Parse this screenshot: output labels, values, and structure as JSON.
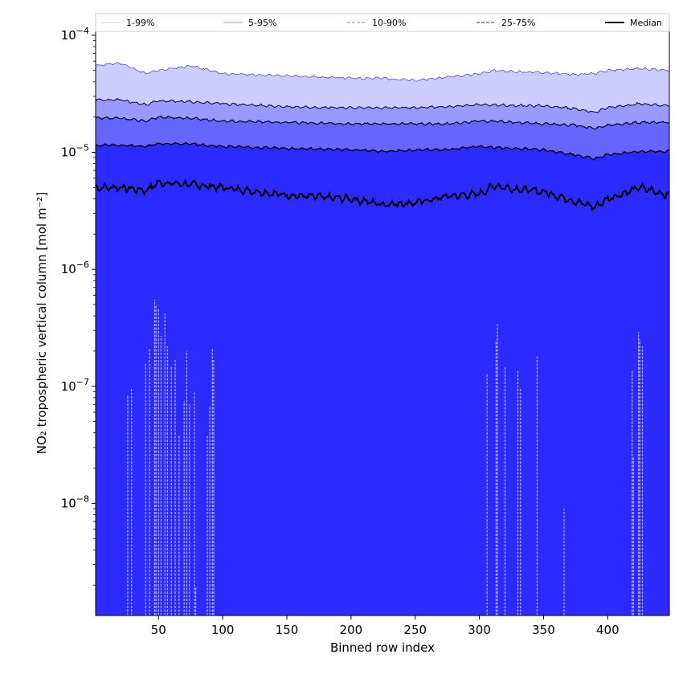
{
  "chart_data": {
    "type": "area",
    "xlabel": "Binned row index",
    "ylabel": "NO₂ tropospheric vertical column [mol m⁻²]",
    "y_scale": "log",
    "xlim": [
      1,
      448
    ],
    "ylim": [
      1.1e-09,
      0.000108
    ],
    "grid": false,
    "legend_placement": "top",
    "x_ticks": [
      50,
      100,
      150,
      200,
      250,
      300,
      350,
      400
    ],
    "x_tick_labels": [
      "50",
      "100",
      "150",
      "200",
      "250",
      "300",
      "350",
      "400"
    ],
    "y_ticks": [
      1e-08,
      1e-07,
      1e-06,
      1e-05,
      0.0001
    ],
    "y_tick_labels": [
      {
        "base": "10",
        "exp": "−8"
      },
      {
        "base": "10",
        "exp": "−7"
      },
      {
        "base": "10",
        "exp": "−6"
      },
      {
        "base": "10",
        "exp": "−5"
      },
      {
        "base": "10",
        "exp": "−4"
      }
    ],
    "x": [
      1,
      20,
      40,
      50,
      75,
      100,
      150,
      200,
      225,
      250,
      275,
      300,
      312,
      325,
      350,
      375,
      390,
      400,
      425,
      448
    ],
    "series": [
      {
        "name": "Median",
        "color": "#000000",
        "style": "solid",
        "values": [
          5e-06,
          5e-06,
          4.7e-06,
          5.5e-06,
          5.3e-06,
          5e-06,
          4.3e-06,
          4e-06,
          3.6e-06,
          3.7e-06,
          4.2e-06,
          4.4e-06,
          5.2e-06,
          4.9e-06,
          4.6e-06,
          3.8e-06,
          3.4e-06,
          4e-06,
          5e-06,
          4.3e-06
        ]
      },
      {
        "name": "25-75%",
        "color": "#6666ff",
        "style": "dashed",
        "lower": [
          2e-07,
          2e-07,
          2e-07,
          2e-07,
          2e-07,
          2e-07,
          2e-07,
          2e-07,
          2e-07,
          2e-07,
          2e-07,
          2e-07,
          2e-07,
          2e-07,
          2e-07,
          2e-07,
          2e-07,
          2e-07,
          2e-07,
          2e-07
        ],
        "upper": [
          1.15e-05,
          1.15e-05,
          1.12e-05,
          1.18e-05,
          1.18e-05,
          1.12e-05,
          1.08e-05,
          1.05e-05,
          1.02e-05,
          1.05e-05,
          1.05e-05,
          1.12e-05,
          1.1e-05,
          1.08e-05,
          1.05e-05,
          9.5e-06,
          8.8e-06,
          9.5e-06,
          1.02e-05,
          1.02e-05
        ]
      },
      {
        "name": "10-90%",
        "color": "#9999ff",
        "style": "dashed",
        "lower": [
          1e-08,
          1e-08,
          1e-08,
          1e-08,
          1e-08,
          1e-08,
          1e-08,
          1e-08,
          1e-08,
          1e-08,
          1e-08,
          1e-08,
          1e-08,
          1e-08,
          1e-08,
          1e-08,
          1e-08,
          1e-08,
          1e-08,
          1e-08
        ],
        "upper": [
          1.95e-05,
          1.95e-05,
          1.85e-05,
          2e-05,
          1.95e-05,
          1.85e-05,
          1.8e-05,
          1.75e-05,
          1.75e-05,
          1.75e-05,
          1.75e-05,
          1.85e-05,
          1.85e-05,
          1.8e-05,
          1.75e-05,
          1.7e-05,
          1.6e-05,
          1.7e-05,
          1.8e-05,
          1.8e-05
        ]
      },
      {
        "name": "5-95%",
        "color": "#4444dd",
        "style": "solid",
        "lower": [
          1.1e-09,
          1.1e-09,
          1.1e-09,
          1.1e-09,
          1.1e-09,
          1.1e-09,
          1.1e-09,
          1.1e-09,
          1.1e-09,
          1.1e-09,
          1.1e-09,
          1.1e-09,
          1.1e-09,
          1.1e-09,
          1.1e-09,
          1.1e-09,
          1.1e-09,
          1.1e-09,
          1.1e-09,
          1.1e-09
        ],
        "upper": [
          2.8e-05,
          2.8e-05,
          2.55e-05,
          2.75e-05,
          2.7e-05,
          2.6e-05,
          2.45e-05,
          2.4e-05,
          2.4e-05,
          2.4e-05,
          2.45e-05,
          2.55e-05,
          2.55e-05,
          2.5e-05,
          2.5e-05,
          2.35e-05,
          2.2e-05,
          2.4e-05,
          2.6e-05,
          2.5e-05
        ]
      },
      {
        "name": "1-99%",
        "color": "#ccccff",
        "style": "solid",
        "lower": [
          1.1e-09,
          1.1e-09,
          1.1e-09,
          1.1e-09,
          1.1e-09,
          1.1e-09,
          1.1e-09,
          1.1e-09,
          1.1e-09,
          1.1e-09,
          1.1e-09,
          1.1e-09,
          1.1e-09,
          1.1e-09,
          1.1e-09,
          1.1e-09,
          1.1e-09,
          1.1e-09,
          1.1e-09,
          1.1e-09
        ],
        "upper": [
          5.5e-05,
          5.8e-05,
          4.7e-05,
          5e-05,
          5.5e-05,
          4.7e-05,
          4.5e-05,
          4.3e-05,
          4.3e-05,
          4.1e-05,
          4.4e-05,
          4.7e-05,
          5e-05,
          4.9e-05,
          4.8e-05,
          4.6e-05,
          4.7e-05,
          5e-05,
          5.2e-05,
          5e-05
        ]
      }
    ],
    "low_spikes": {
      "x": [
        26,
        29,
        40,
        43,
        47,
        48,
        50,
        52,
        55,
        57,
        60,
        63,
        66,
        70,
        72,
        74,
        78,
        79,
        88,
        90,
        92,
        93,
        306,
        313,
        314,
        320,
        330,
        332,
        345,
        366,
        419,
        420,
        424,
        425,
        427
      ],
      "top": [
        8.5e-08,
        9.5e-08,
        1.6e-07,
        2.1e-07,
        5.5e-07,
        5e-07,
        4.6e-07,
        2.7e-07,
        4.2e-07,
        2.2e-07,
        1.5e-07,
        1.7e-07,
        3.8e-08,
        7.5e-08,
        2e-07,
        7e-08,
        9e-08,
        1.9e-09,
        3.8e-08,
        6.7e-08,
        2.1e-07,
        1.7e-07,
        1.3e-07,
        2.4e-07,
        3.4e-07,
        1.45e-07,
        1.35e-07,
        9.8e-08,
        1.8e-07,
        9e-09,
        1.35e-07,
        2.5e-08,
        2.9e-07,
        2.5e-07,
        2.2e-07
      ]
    }
  }
}
